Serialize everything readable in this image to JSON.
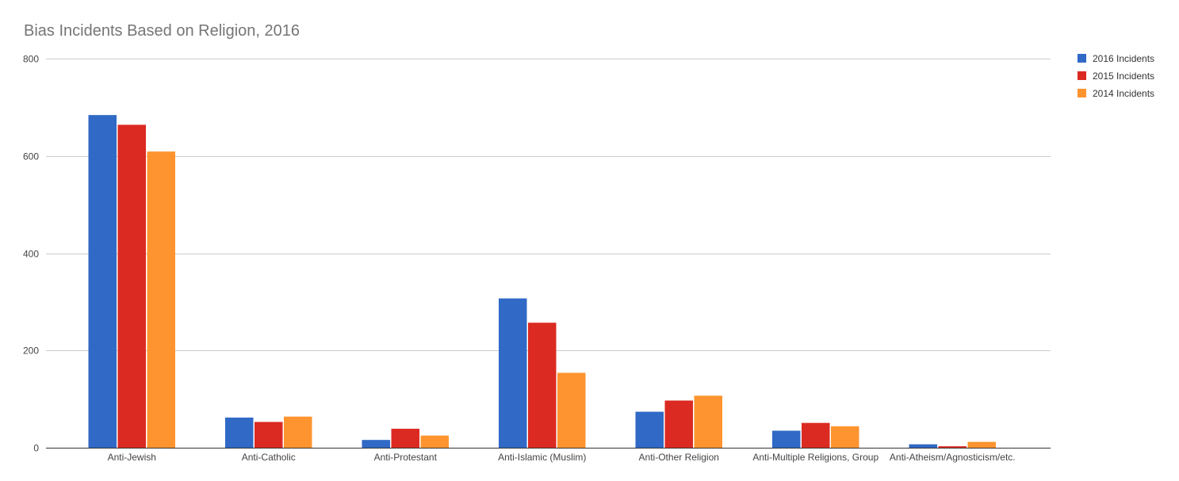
{
  "chart_data": {
    "type": "bar",
    "title": "Bias Incidents Based on Religion, 2016",
    "xlabel": "",
    "ylabel": "",
    "ylim": [
      0,
      800
    ],
    "yticks": [
      0,
      200,
      400,
      600,
      800
    ],
    "grid": true,
    "legend_position": "top-right",
    "categories": [
      "Anti-Jewish",
      "Anti-Catholic",
      "Anti-Protestant",
      "Anti-Islamic (Muslim)",
      "Anti-Other Religion",
      "Anti-Multiple Religions, Group",
      "Anti-Atheism/Agnosticism/etc."
    ],
    "series": [
      {
        "name": "2016 Incidents",
        "color": "#3069c6",
        "values": [
          684,
          62,
          16,
          307,
          74,
          35,
          7
        ]
      },
      {
        "name": "2015 Incidents",
        "color": "#db2a22",
        "values": [
          664,
          53,
          39,
          257,
          97,
          51,
          3
        ]
      },
      {
        "name": "2014 Incidents",
        "color": "#fd9430",
        "values": [
          609,
          64,
          25,
          154,
          107,
          44,
          12
        ]
      }
    ]
  }
}
